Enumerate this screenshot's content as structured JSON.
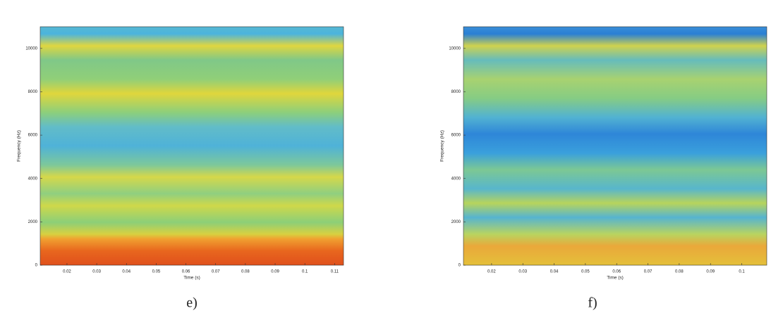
{
  "chart_data": [
    {
      "type": "spectrogram",
      "caption": "e)",
      "xlabel": "Time (s)",
      "ylabel": "Frequency (Hz)",
      "xlim": [
        0.011,
        0.113
      ],
      "xticks": [
        0.02,
        0.03,
        0.04,
        0.05,
        0.06,
        0.07,
        0.08,
        0.09,
        0.1,
        0.11
      ],
      "ylim": [
        0,
        11000
      ],
      "yticks": [
        0,
        2000,
        4000,
        6000,
        8000,
        10000
      ]
    },
    {
      "type": "spectrogram",
      "caption": "f)",
      "xlabel": "Time (s)",
      "ylabel": "Frequency (Hz)",
      "xlim": [
        0.011,
        0.108
      ],
      "xticks": [
        0.02,
        0.03,
        0.04,
        0.05,
        0.06,
        0.07,
        0.08,
        0.09,
        0.1
      ],
      "ylim": [
        0,
        11000
      ],
      "yticks": [
        0,
        2000,
        4000,
        6000,
        8000,
        10000
      ]
    }
  ]
}
